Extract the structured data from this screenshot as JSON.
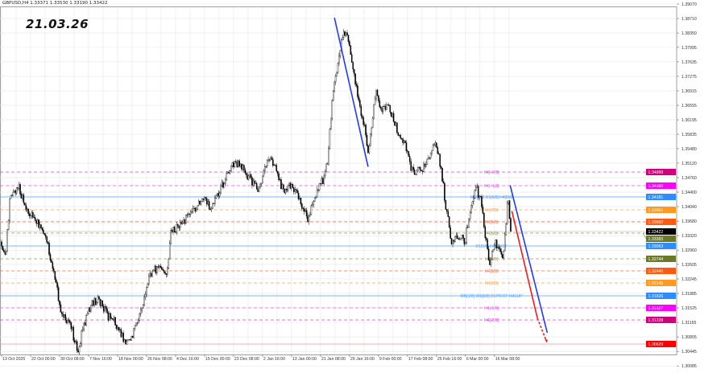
{
  "header": {
    "symbol_line": "GBPUSD,H4  1.33371 1.33530 1.33190 1.33422",
    "date_stamp": "21.03.26"
  },
  "colors": {
    "up_body": "#ffffff",
    "down_body": "#000000",
    "grid": "#e6e6e6",
    "trend_blue": "#1f3cf0",
    "trend_red": "#f01c1c",
    "current_price_tag": "#000000"
  },
  "chart_data": {
    "type": "candlestick",
    "symbol": "GBPUSD",
    "timeframe": "H4",
    "ylim": [
      1.3,
      1.392
    ],
    "grid": true,
    "y_ticks": [
      "1.39070",
      "1.38710",
      "1.38350",
      "1.37995",
      "1.37635",
      "1.37275",
      "1.36915",
      "1.36555",
      "1.36195",
      "1.35835",
      "1.35480",
      "1.35120",
      "1.34760",
      "1.34400",
      "1.34040",
      "1.33680",
      "1.33320",
      "1.32960",
      "1.32605",
      "1.32245",
      "1.31885",
      "1.31525",
      "1.31165",
      "1.30805",
      "1.30445",
      "1.30085"
    ],
    "x_ticks": [
      "13 Oct 2025",
      "22 Oct 00:00",
      "30 Oct 08:00",
      "7 Nov 16:00",
      "18 Nov 00:00",
      "26 Nov 08:00",
      "4 Dec 16:00",
      "15 Dec 00:00",
      "23 Dec 08:00",
      "2 Jan 16:00",
      "13 Jan 00:00",
      "21 Jan 08:00",
      "29 Jan 16:00",
      "9 Feb 00:00",
      "17 Feb 08:00",
      "25 Feb 16:00",
      "6 Mar 00:00",
      "16 Mar 08:00"
    ],
    "bars_per_x_tick": 50,
    "close_bar": [
      0,
      7,
      14,
      28,
      42,
      56,
      76,
      90,
      104,
      118,
      132,
      139,
      153,
      167,
      181,
      195,
      209,
      215,
      229,
      243,
      257,
      271,
      285,
      292,
      306,
      320,
      334,
      348,
      361,
      375,
      389,
      403,
      417,
      431,
      445,
      459,
      473,
      487,
      500,
      514,
      528,
      542,
      556,
      563,
      570,
      577,
      584,
      591,
      598,
      605,
      612,
      626,
      632,
      639,
      646,
      653,
      667,
      681,
      695,
      709,
      723,
      737,
      748,
      758,
      765,
      776,
      785,
      799,
      809,
      817,
      827,
      834,
      841,
      851,
      859,
      865,
      873,
      878
    ],
    "close": [
      1.3317,
      1.3277,
      1.3417,
      1.3457,
      1.3397,
      1.3377,
      1.3337,
      1.3237,
      1.3137,
      1.3117,
      1.3037,
      1.3097,
      1.3157,
      1.3177,
      1.3137,
      1.3117,
      1.3077,
      1.3057,
      1.3097,
      1.3157,
      1.3237,
      1.3257,
      1.3237,
      1.3337,
      1.3357,
      1.3377,
      1.3397,
      1.3427,
      1.3397,
      1.3437,
      1.3487,
      1.3517,
      1.3497,
      1.3467,
      1.3447,
      1.3527,
      1.3497,
      1.3437,
      1.3457,
      1.3417,
      1.3377,
      1.3437,
      1.3477,
      1.3517,
      1.3677,
      1.3737,
      1.3797,
      1.3837,
      1.3817,
      1.3757,
      1.3697,
      1.3597,
      1.3527,
      1.3617,
      1.3697,
      1.3637,
      1.3657,
      1.3597,
      1.3557,
      1.3487,
      1.3497,
      1.3517,
      1.3567,
      1.3497,
      1.3417,
      1.3317,
      1.3337,
      1.3317,
      1.3397,
      1.3457,
      1.3417,
      1.3337,
      1.3257,
      1.3317,
      1.3297,
      1.3277,
      1.3427,
      1.33422
    ],
    "current_price": "1.33422",
    "levels": [
      {
        "price": 1.34899,
        "tag": "1.34899",
        "label": "H4[+2/8]",
        "color": "#e040e0",
        "tag_color": "#d0007a",
        "dash": true
      },
      {
        "price": 1.3456,
        "tag": "1.34560",
        "label": "H4[+1/8]",
        "color": "#ff40ff",
        "tag_color": "#ff00ff",
        "dash": true
      },
      {
        "price": 1.34281,
        "tag": "1.34281",
        "label": "MN[7/8] D1[8/8] H4[8/8]",
        "color": "#4aa0ff",
        "tag_color": "#2f8cff",
        "dash": false
      },
      {
        "price": 1.33961,
        "tag": "1.33961",
        "label": "H4[7/8]",
        "color": "#ffa040",
        "tag_color": "#ff9a20",
        "dash": true
      },
      {
        "price": 1.33662,
        "tag": "1.33662",
        "label": "H4[6/8]",
        "color": "#ff6a40",
        "tag_color": "#ff5a10",
        "dash": true
      },
      {
        "price": 1.33383,
        "tag": "1.33383",
        "label": "H4[5/8]",
        "color": "#9a9a50",
        "tag_color": "#6b7a2a",
        "dash": true
      },
      {
        "price": 1.33063,
        "tag": "1.33063",
        "label": "D1[5/8] H4PIVOT",
        "color": "#4aa0ff",
        "tag_color": "#2f8cff",
        "dash": false
      },
      {
        "price": 1.32744,
        "tag": "1.32744",
        "label": "H4[3/8]",
        "color": "#9a9a50",
        "tag_color": "#6b7a2a",
        "dash": true
      },
      {
        "price": 1.32445,
        "tag": "1.32445",
        "label": "H4[2/8]",
        "color": "#ff6a40",
        "tag_color": "#ff5a10",
        "dash": true
      },
      {
        "price": 1.32145,
        "tag": "1.32145",
        "label": "H4[1/8]",
        "color": "#ffa040",
        "tag_color": "#ff9a20",
        "dash": true
      },
      {
        "price": 1.31826,
        "tag": "1.31826",
        "label": "MN[1/8] W1[8/8] D1PIVOT H4SUP",
        "color": "#4aa0ff",
        "tag_color": "#2f8cff",
        "dash": false
      },
      {
        "price": 1.31527,
        "tag": "1.31527",
        "label": "H4[-1/8]",
        "color": "#ff40ff",
        "tag_color": "#ff00ff",
        "dash": true
      },
      {
        "price": 1.31228,
        "tag": "1.31228",
        "label": "H4[-2/8]",
        "color": "#e040e0",
        "tag_color": "#d0007a",
        "dash": true
      },
      {
        "price": 1.30629,
        "tag": "1.30629",
        "label": "",
        "color": "#ff9090",
        "tag_color": "#ff0000",
        "dash": false
      }
    ],
    "trendlines": [
      {
        "color": "#1f3cf0",
        "dash": false,
        "from": {
          "bar": 574,
          "price": 1.3873
        },
        "to": {
          "bar": 632,
          "price": 1.3503
        }
      },
      {
        "color": "#1f3cf0",
        "dash": false,
        "from": {
          "bar": 877,
          "price": 1.3457
        },
        "to": {
          "bar": 941,
          "price": 1.3091
        }
      },
      {
        "color": "#f01c1c",
        "dash": false,
        "from": {
          "bar": 880,
          "price": 1.3393
        },
        "to": {
          "bar": 924,
          "price": 1.3127
        }
      },
      {
        "color": "#f01c1c",
        "dash": true,
        "from": {
          "bar": 924,
          "price": 1.3127
        },
        "to": {
          "bar": 940,
          "price": 1.3069
        }
      }
    ]
  }
}
